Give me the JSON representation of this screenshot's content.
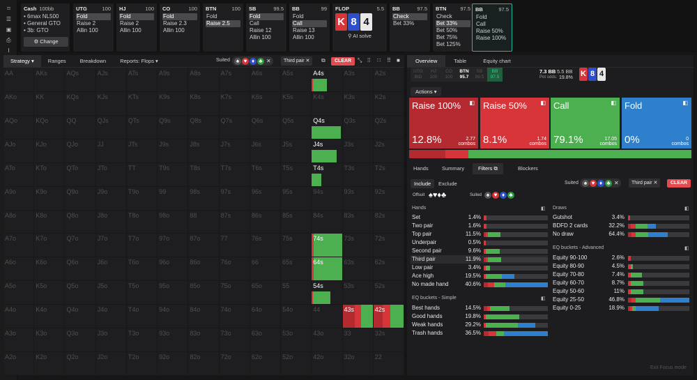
{
  "colors": {
    "raise_big": "#b52a31",
    "raise_small": "#d8353a",
    "call": "#4caf50",
    "fold": "#2e7fcc"
  },
  "sidebar": {
    "icons": [
      "bookmark-icon",
      "bars-icon",
      "save-icon",
      "print-icon",
      "text-cursor-icon"
    ]
  },
  "cash": {
    "title": "Cash",
    "stakes": "100bb",
    "lines": [
      "• 6max NL500",
      "• General GTO",
      "• 3b: GTO"
    ],
    "change": "Change"
  },
  "positions": [
    {
      "name": "UTG",
      "stack": "100",
      "actions": [
        "Fold",
        "Raise 2",
        "Allin 100"
      ],
      "sel": 0
    },
    {
      "name": "HJ",
      "stack": "100",
      "actions": [
        "Fold",
        "Raise 2",
        "Allin 100"
      ],
      "sel": 0
    },
    {
      "name": "CO",
      "stack": "100",
      "actions": [
        "Fold",
        "Raise 2.3",
        "Allin 100"
      ],
      "sel": 0
    },
    {
      "name": "BTN",
      "stack": "100",
      "actions": [
        "Fold",
        "Raise 2.5"
      ],
      "sel": 1
    },
    {
      "name": "SB",
      "stack": "99.5",
      "actions": [
        "Fold",
        "Call",
        "Raise 12",
        "Allin 100"
      ],
      "sel": 0
    },
    {
      "name": "BB",
      "stack": "99",
      "actions": [
        "Fold",
        "Call",
        "Raise 13",
        "Allin 100"
      ],
      "sel": 1
    },
    {
      "name": "BB",
      "stack": "97.5",
      "actions": [
        "Check",
        "Bet 33%"
      ],
      "sel": 0
    },
    {
      "name": "BTN",
      "stack": "97.5",
      "actions": [
        "Check",
        "Bet 33%",
        "Bet 50%",
        "Bet 75%",
        "Bet 125%"
      ],
      "sel": 1
    },
    {
      "name": "BB",
      "stack": "97.5",
      "actions": [
        "Fold",
        "Call",
        "Raise 50%",
        "Raise 100%"
      ],
      "sel": -1
    }
  ],
  "flop": {
    "title": "FLOP",
    "pot": "5.5",
    "cards": [
      "K",
      "8",
      "4"
    ],
    "ai": "AI solve"
  },
  "left_tabs": [
    "Strategy",
    "Ranges",
    "Breakdown",
    "Reports: Flops"
  ],
  "filter": {
    "suited": "Suited",
    "third_pair": "Third pair",
    "clear": "CLEAR"
  },
  "grid": {
    "rows": [
      [
        "AA",
        "AKs",
        "AQs",
        "AJs",
        "ATs",
        "A9s",
        "A8s",
        "A7s",
        "A6s",
        "A5s",
        "A4s",
        "A3s",
        "A2s"
      ],
      [
        "AKo",
        "KK",
        "KQs",
        "KJs",
        "KTs",
        "K9s",
        "K8s",
        "K7s",
        "K6s",
        "K5s",
        "K4s",
        "K3s",
        "K2s"
      ],
      [
        "AQo",
        "KQo",
        "QQ",
        "QJs",
        "QTs",
        "Q9s",
        "Q8s",
        "Q7s",
        "Q6s",
        "Q5s",
        "Q4s",
        "Q3s",
        "Q2s"
      ],
      [
        "AJo",
        "KJo",
        "QJo",
        "JJ",
        "JTs",
        "J9s",
        "J8s",
        "J7s",
        "J6s",
        "J5s",
        "J4s",
        "J3s",
        "J2s"
      ],
      [
        "ATo",
        "KTo",
        "QTo",
        "JTo",
        "TT",
        "T9s",
        "T8s",
        "T7s",
        "T6s",
        "T5s",
        "T4s",
        "T3s",
        "T2s"
      ],
      [
        "A9o",
        "K9o",
        "Q9o",
        "J9o",
        "T9o",
        "99",
        "98s",
        "97s",
        "96s",
        "95s",
        "94s",
        "93s",
        "92s"
      ],
      [
        "A8o",
        "K8o",
        "Q8o",
        "J8o",
        "T8o",
        "98o",
        "88",
        "87s",
        "86s",
        "85s",
        "84s",
        "83s",
        "82s"
      ],
      [
        "A7o",
        "K7o",
        "Q7o",
        "J7o",
        "T7o",
        "97o",
        "87o",
        "77",
        "76s",
        "75s",
        "74s",
        "73s",
        "72s"
      ],
      [
        "A6o",
        "K6o",
        "Q6o",
        "J6o",
        "T6o",
        "96o",
        "86o",
        "76o",
        "66",
        "65s",
        "64s",
        "63s",
        "62s"
      ],
      [
        "A5o",
        "K5o",
        "Q5o",
        "J5o",
        "T5o",
        "95o",
        "85o",
        "75o",
        "65o",
        "55",
        "54s",
        "53s",
        "52s"
      ],
      [
        "A4o",
        "K4o",
        "Q4o",
        "J4o",
        "T4o",
        "94o",
        "84o",
        "74o",
        "64o",
        "54o",
        "44",
        "43s",
        "42s"
      ],
      [
        "A3o",
        "K3o",
        "Q3o",
        "J3o",
        "T3o",
        "93o",
        "83o",
        "73o",
        "63o",
        "53o",
        "43o",
        "33",
        "32s"
      ],
      [
        "A2o",
        "K2o",
        "Q2o",
        "J2o",
        "T2o",
        "92o",
        "82o",
        "72o",
        "62o",
        "52o",
        "42o",
        "32o",
        "22"
      ]
    ],
    "highlighted": [
      {
        "hand": "A4s",
        "segments": [
          {
            "action": "raise_small",
            "pct": 0.06
          },
          {
            "action": "call",
            "pct": 0.94
          }
        ],
        "fill": 0.5
      },
      {
        "hand": "Q4s",
        "segments": [
          {
            "action": "call",
            "pct": 1
          }
        ],
        "fill": 0.95
      },
      {
        "hand": "J4s",
        "segments": [
          {
            "action": "call",
            "pct": 1
          }
        ],
        "fill": 0.8
      },
      {
        "hand": "T4s",
        "segments": [
          {
            "action": "call",
            "pct": 1
          }
        ],
        "fill": 0.3
      },
      {
        "hand": "74s",
        "segments": [
          {
            "action": "raise_small",
            "pct": 0.06
          },
          {
            "action": "call",
            "pct": 0.94
          }
        ],
        "fill": 1
      },
      {
        "hand": "64s",
        "segments": [
          {
            "action": "raise_small",
            "pct": 0.06
          },
          {
            "action": "call",
            "pct": 0.94
          }
        ],
        "fill": 1
      },
      {
        "hand": "54s",
        "segments": [
          {
            "action": "raise_small",
            "pct": 0.06
          },
          {
            "action": "call",
            "pct": 0.94
          }
        ],
        "fill": 0.6
      },
      {
        "hand": "43s",
        "segments": [
          {
            "action": "raise_big",
            "pct": 0.4
          },
          {
            "action": "raise_small",
            "pct": 0.2
          },
          {
            "action": "call",
            "pct": 0.4
          }
        ],
        "fill": 1
      },
      {
        "hand": "42s",
        "segments": [
          {
            "action": "raise_big",
            "pct": 0.3
          },
          {
            "action": "raise_small",
            "pct": 0.25
          },
          {
            "action": "call",
            "pct": 0.45
          }
        ],
        "fill": 1
      }
    ]
  },
  "right_tabs": [
    "Overview",
    "Table",
    "Equity chart"
  ],
  "pos_chips": [
    {
      "n": "UTG",
      "s": "BID"
    },
    {
      "n": "HJ",
      "s": "100"
    },
    {
      "n": "CO",
      "s": "100"
    },
    {
      "n": "BTN",
      "s": "95.7"
    },
    {
      "n": "SB",
      "s": "99.5"
    },
    {
      "n": "BB",
      "s": "97.5"
    }
  ],
  "pot": {
    "bb": "7.3 BB",
    "pot": "5.5 BB",
    "odds_label": "Pot odds:",
    "odds": "19.8%"
  },
  "actions_label": "Actions",
  "action_boxes": [
    {
      "title": "Raise 100%",
      "value": "12.8%",
      "combos": "2.77",
      "combos_label": "combos",
      "color": "raise_big"
    },
    {
      "title": "Raise 50%",
      "value": "8.1%",
      "combos": "1.74",
      "combos_label": "combos",
      "color": "raise_small"
    },
    {
      "title": "Call",
      "value": "79.1%",
      "combos": "17.05",
      "combos_label": "combos",
      "color": "call"
    },
    {
      "title": "Fold",
      "value": "0%",
      "combos": "0",
      "combos_label": "combos",
      "color": "fold"
    }
  ],
  "freq": [
    0.128,
    0.081,
    0.791,
    0
  ],
  "sub_tabs": [
    "Hands",
    "Summary",
    "Filters",
    "Blockers"
  ],
  "include": "Include",
  "exclude": "Exclude",
  "offsuit": "Offsuit",
  "suited_lbl": "Suited",
  "hands_title": "Hands",
  "hands": [
    {
      "n": "Set",
      "p": "1.4%",
      "b": [
        0,
        0.04,
        0,
        0,
        0.96
      ]
    },
    {
      "n": "Two pair",
      "p": "1.6%",
      "b": [
        0,
        0.04,
        0,
        0,
        0.96
      ]
    },
    {
      "n": "Top pair",
      "p": "11.5%",
      "b": [
        0.03,
        0.03,
        0.2,
        0,
        0.74
      ]
    },
    {
      "n": "Underpair",
      "p": "0.5%",
      "b": [
        0,
        0.03,
        0,
        0,
        0.97
      ]
    },
    {
      "n": "Second pair",
      "p": "9.6%",
      "b": [
        0,
        0.03,
        0.22,
        0,
        0.75
      ]
    },
    {
      "n": "Third pair",
      "p": "11.9%",
      "b": [
        0.03,
        0.04,
        0.2,
        0,
        0.73
      ]
    },
    {
      "n": "Low pair",
      "p": "3.4%",
      "b": [
        0,
        0.03,
        0.07,
        0,
        0.9
      ]
    },
    {
      "n": "Ace high",
      "p": "19.5%",
      "b": [
        0,
        0.03,
        0.25,
        0.2,
        0.52
      ]
    },
    {
      "n": "No made hand",
      "p": "40.6%",
      "b": [
        0.06,
        0.1,
        0.18,
        0.66,
        0
      ]
    }
  ],
  "eqsimple_title": "EQ buckets - Simple",
  "eqsimple": [
    {
      "n": "Best hands",
      "p": "14.5%",
      "b": [
        0.05,
        0.05,
        0.3,
        0,
        0.6
      ]
    },
    {
      "n": "Good hands",
      "p": "19.8%",
      "b": [
        0,
        0.03,
        0.52,
        0,
        0.45
      ]
    },
    {
      "n": "Weak hands",
      "p": "29.2%",
      "b": [
        0,
        0.03,
        0.5,
        0.27,
        0.2
      ]
    },
    {
      "n": "Trash hands",
      "p": "36.5%",
      "b": [
        0.08,
        0.12,
        0.12,
        0.68,
        0
      ]
    }
  ],
  "draws_title": "Draws",
  "draws": [
    {
      "n": "Gutshot",
      "p": "3.4%",
      "b": [
        0,
        0.03,
        0,
        0,
        0.97
      ]
    },
    {
      "n": "BDFD 2 cards",
      "p": "32.2%",
      "b": [
        0.05,
        0.07,
        0.2,
        0.13,
        0.55
      ]
    },
    {
      "n": "No draw",
      "p": "64.4%",
      "b": [
        0.06,
        0.07,
        0.2,
        0.32,
        0.35
      ]
    }
  ],
  "eqadv_title": "EQ buckets - Advanced",
  "eqadv": [
    {
      "n": "Equity 90-100",
      "p": "2.6%",
      "b": [
        0,
        0.05,
        0,
        0,
        0.95
      ]
    },
    {
      "n": "Equity 80-90",
      "p": "4.5%",
      "b": [
        0,
        0.05,
        0.03,
        0,
        0.92
      ]
    },
    {
      "n": "Equity 70-80",
      "p": "7.4%",
      "b": [
        0,
        0.05,
        0.18,
        0,
        0.77
      ]
    },
    {
      "n": "Equity 60-70",
      "p": "8.7%",
      "b": [
        0,
        0.05,
        0.2,
        0,
        0.75
      ]
    },
    {
      "n": "Equity 50-60",
      "p": "11%",
      "b": [
        0,
        0.05,
        0.2,
        0,
        0.75
      ]
    },
    {
      "n": "Equity 25-50",
      "p": "46.8%",
      "b": [
        0.06,
        0.06,
        0.4,
        0.48,
        0
      ]
    },
    {
      "n": "Equity 0-25",
      "p": "18.9%",
      "b": [
        0.03,
        0.04,
        0.05,
        0.38,
        0.5
      ]
    }
  ],
  "exit": "Exit Focus mode"
}
